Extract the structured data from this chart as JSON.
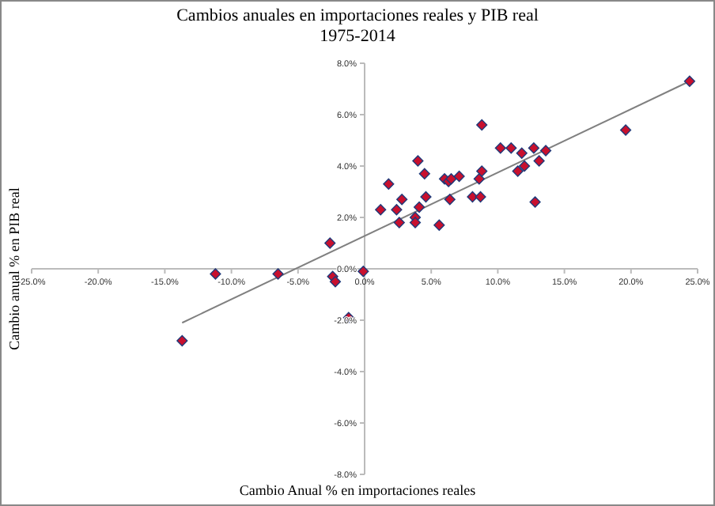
{
  "chart_data": {
    "type": "scatter",
    "title": "Cambios anuales en importaciones reales y PIB real",
    "subtitle": "1975-2014",
    "xlabel": "Cambio Anual % en importaciones reales",
    "ylabel": "Cambio anual % en PIB real",
    "marker": "diamond",
    "grid": false,
    "xlim": [
      -25,
      25
    ],
    "ylim": [
      -8,
      8
    ],
    "xticks": [
      {
        "value": -25,
        "label": "-25.0%"
      },
      {
        "value": -20,
        "label": "-20.0%"
      },
      {
        "value": -15,
        "label": "-15.0%"
      },
      {
        "value": -10,
        "label": "-10.0%"
      },
      {
        "value": -5,
        "label": "-5.0%"
      },
      {
        "value": 0,
        "label": "0.0%"
      },
      {
        "value": 5,
        "label": "5.0%"
      },
      {
        "value": 10,
        "label": "10.0%"
      },
      {
        "value": 15,
        "label": "15.0%"
      },
      {
        "value": 20,
        "label": "20.0%"
      },
      {
        "value": 25,
        "label": "25.0%"
      }
    ],
    "yticks": [
      {
        "value": -8,
        "label": "-8.0%"
      },
      {
        "value": -6,
        "label": "-6.0%"
      },
      {
        "value": -4,
        "label": "-4.0%"
      },
      {
        "value": -2,
        "label": "-2.0%"
      },
      {
        "value": 0,
        "label": "0.0%"
      },
      {
        "value": 2,
        "label": "2.0%"
      },
      {
        "value": 4,
        "label": "4.0%"
      },
      {
        "value": 6,
        "label": "6.0%"
      },
      {
        "value": 8,
        "label": "8.0%"
      }
    ],
    "series": [
      {
        "color": "#c8102e",
        "x": [
          -13.7,
          -11.2,
          -6.5,
          -2.6,
          -2.4,
          -2.2,
          -1.2,
          -0.1,
          1.2,
          1.8,
          2.4,
          2.6,
          2.8,
          3.8,
          3.8,
          4.1,
          4.0,
          4.5,
          4.6,
          5.6,
          6.0,
          6.3,
          6.4,
          6.5,
          7.1,
          8.1,
          8.6,
          8.7,
          8.8,
          8.8,
          10.2,
          11.0,
          11.5,
          11.8,
          12.0,
          12.7,
          12.8,
          13.1,
          13.6,
          19.6,
          24.4
        ],
        "values": [
          -2.8,
          -0.2,
          -0.2,
          1.0,
          -0.3,
          -0.5,
          -1.9,
          -0.1,
          2.3,
          3.3,
          2.3,
          1.8,
          2.7,
          2.0,
          1.8,
          2.4,
          4.2,
          3.7,
          2.8,
          1.7,
          3.5,
          3.4,
          2.7,
          3.5,
          3.6,
          2.8,
          3.5,
          2.8,
          3.8,
          5.6,
          4.7,
          4.7,
          3.8,
          4.5,
          4.0,
          4.7,
          2.6,
          4.2,
          4.6,
          5.4,
          7.3
        ]
      },
      {
        "type": "line",
        "color": "#808080",
        "marker": "none",
        "x": [
          -13.7,
          24.4
        ],
        "values": [
          -2.1,
          7.3
        ]
      }
    ]
  }
}
